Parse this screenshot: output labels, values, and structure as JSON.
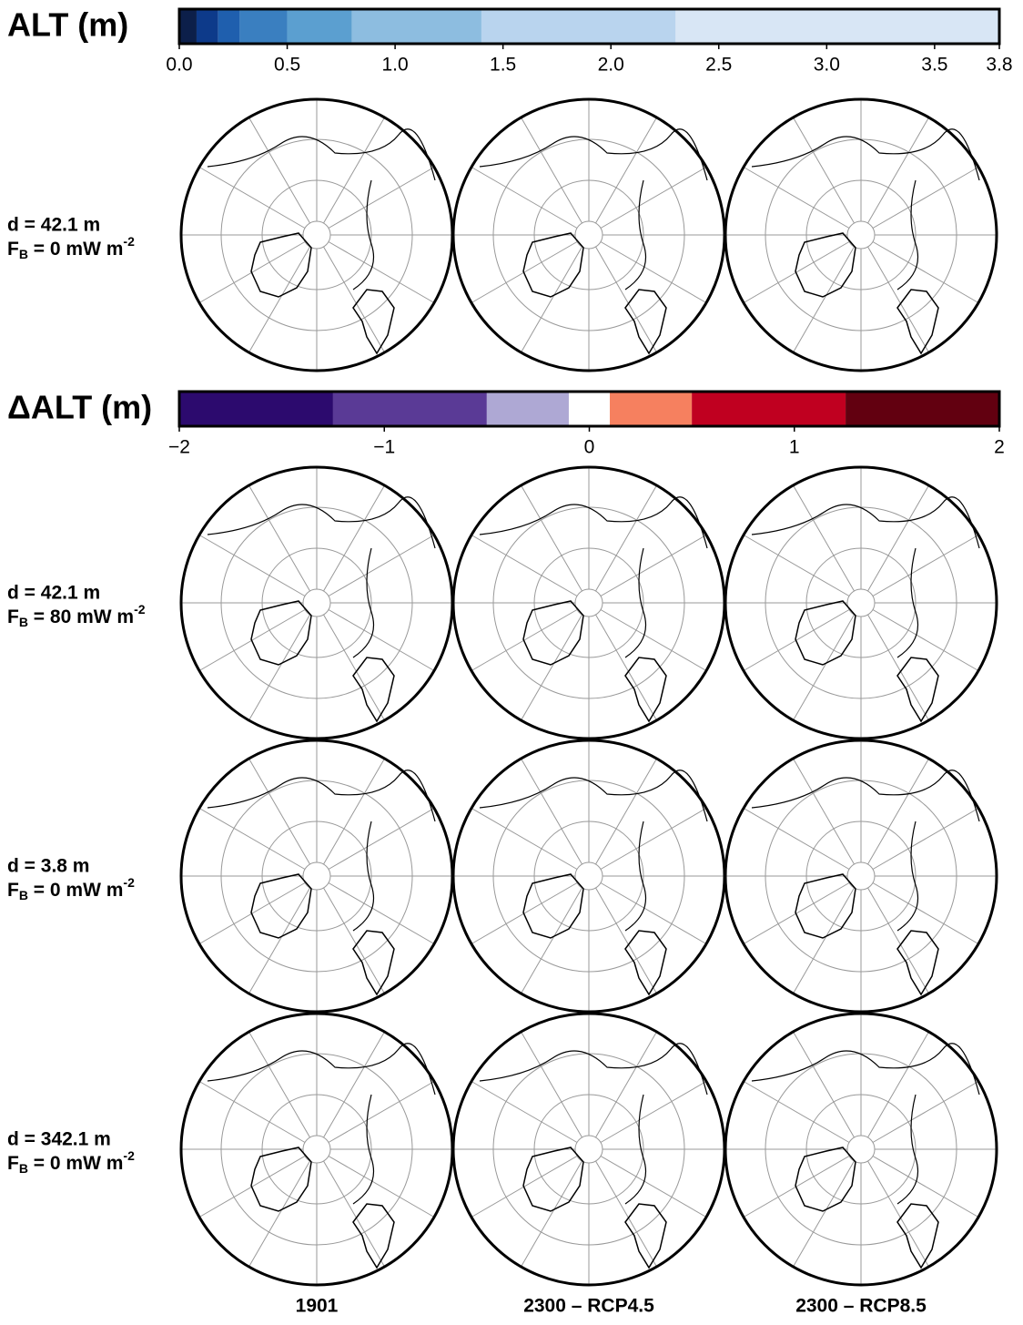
{
  "figure": {
    "colorbars": [
      {
        "title": "ALT (m)",
        "lim": [
          0,
          3.8
        ],
        "bounds": [
          0,
          0.08,
          0.18,
          0.28,
          0.5,
          0.8,
          1.4,
          2.3,
          3.8
        ],
        "colors": [
          "#0c1f4a",
          "#0d3a8a",
          "#1f5fae",
          "#3a7fc0",
          "#5b9fd0",
          "#8dbde0",
          "#b9d4ee",
          "#d8e6f5"
        ],
        "ticks": [
          {
            "value": 0,
            "label": "0.0"
          },
          0.5,
          {
            "value": 1,
            "label": "1.0"
          },
          1.5,
          {
            "value": 2,
            "label": "2.0"
          },
          2.5,
          {
            "value": 3,
            "label": "3.0"
          },
          3.5,
          3.8
        ]
      },
      {
        "title": "ΔALT (m)",
        "lim": [
          -2,
          2
        ],
        "bounds": [
          -2,
          -1.25,
          -0.5,
          -0.1,
          0.1,
          0.5,
          1.25,
          2
        ],
        "colors": [
          "#2c0a6e",
          "#5a3a96",
          "#aea8d4",
          "#ffffff",
          "#f6805f",
          "#c00020",
          "#620010"
        ],
        "ticks": [
          {
            "value": -2,
            "label": "−2"
          },
          {
            "value": -1,
            "label": "−1"
          },
          0,
          1,
          2
        ]
      }
    ],
    "rows": [
      {
        "d": "d = 42.1 m",
        "f": [
          "F",
          "B",
          " = 0 mW m",
          "-2"
        ]
      },
      {
        "d": "d = 42.1 m",
        "f": [
          "F",
          "B",
          " = 80 mW m",
          "-2"
        ]
      },
      {
        "d": "d = 3.8 m",
        "f": [
          "F",
          "B",
          " = 0 mW m",
          "-2"
        ]
      },
      {
        "d": "d = 342.1 m",
        "f": [
          "F",
          "B",
          " = 0 mW m",
          "-2"
        ]
      }
    ],
    "columns": [
      "1901",
      "2300 – RCP4.5",
      "2300 – RCP8.5"
    ]
  }
}
